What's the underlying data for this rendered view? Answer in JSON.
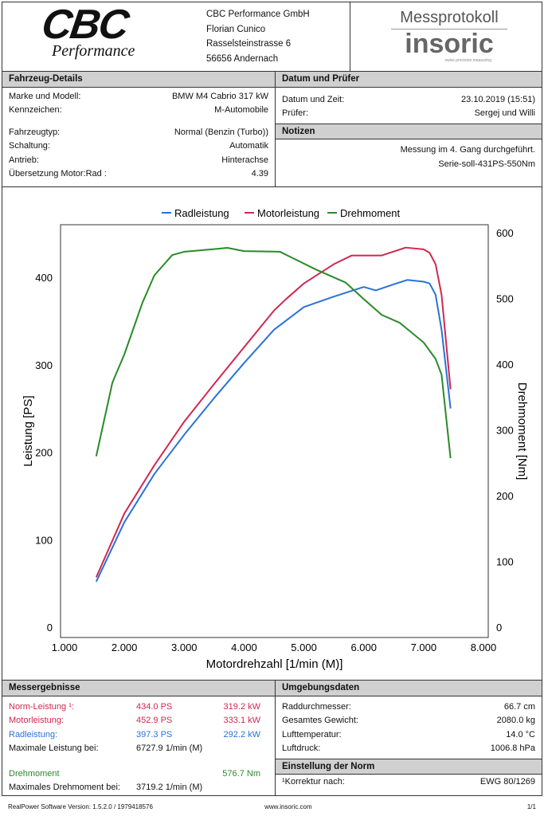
{
  "company": {
    "logo_text": "CBC",
    "logo_sub": "Performance",
    "lines": [
      "CBC Performance GmbH",
      "Florian Cunico",
      "Rasselsteinstrasse 6",
      "56656 Andernach"
    ]
  },
  "report": {
    "title": "Messprotokoll",
    "brand": "insoric",
    "brand_tagline": "swiss precision measuring"
  },
  "vehicle": {
    "title": "Fahrzeug-Details",
    "rows": [
      {
        "label": "Marke und Modell:",
        "value": "BMW M4 Cabrio 317 kW"
      },
      {
        "label": "Kennzeichen:",
        "value": "M-Automobile"
      },
      {
        "label": "Fahrzeugtyp:",
        "value": "Normal (Benzin (Turbo))"
      },
      {
        "label": "Schaltung:",
        "value": "Automatik"
      },
      {
        "label": "Antrieb:",
        "value": "Hinterachse"
      },
      {
        "label": "Übersetzung Motor:Rad :",
        "value": "4.39"
      }
    ]
  },
  "date": {
    "title": "Datum und Prüfer",
    "rows": [
      {
        "label": "Datum und Zeit:",
        "value": "23.10.2019 (15:51)"
      },
      {
        "label": "Prüfer:",
        "value": "Sergej und Willi"
      }
    ]
  },
  "notes": {
    "title": "Notizen",
    "lines": [
      "Messung im 4. Gang durchgeführt.",
      "Serie-soll-431PS-550Nm"
    ]
  },
  "chart_data": {
    "type": "line",
    "xlabel": "Motordrehzahl [1/min (M)]",
    "ylabel": "Leistung [PS]",
    "y2label": "Drehmoment [Nm]",
    "xlim": [
      1000,
      8000
    ],
    "ylim": [
      0,
      450
    ],
    "y2lim": [
      0,
      650
    ],
    "xticks": [
      "1.000",
      "2.000",
      "3.000",
      "4.000",
      "5.000",
      "6.000",
      "7.000",
      "8.000"
    ],
    "yticks": [
      "0",
      "100",
      "200",
      "300",
      "400"
    ],
    "y2ticks": [
      "0",
      "100",
      "200",
      "300",
      "400",
      "500",
      "600"
    ],
    "legend_position": "top-center",
    "series": [
      {
        "name": "Radleistung",
        "color": "#2a72d8",
        "axis": "left",
        "x": [
          1530,
          2000,
          2500,
          3000,
          3500,
          4000,
          4500,
          5000,
          5500,
          6000,
          6200,
          6500,
          6728,
          7000,
          7100,
          7200,
          7300,
          7450
        ],
        "y": [
          52,
          120,
          175,
          220,
          262,
          302,
          340,
          366,
          378,
          389,
          385,
          392,
          397,
          395,
          393,
          380,
          340,
          250
        ]
      },
      {
        "name": "Motorleistung",
        "color": "#d02850",
        "axis": "left",
        "x": [
          1530,
          2000,
          2500,
          3000,
          3500,
          4000,
          4500,
          4700,
          5000,
          5500,
          5800,
          6000,
          6300,
          6700,
          7000,
          7100,
          7200,
          7300,
          7450
        ],
        "y": [
          57,
          130,
          185,
          235,
          278,
          320,
          362,
          375,
          393,
          415,
          425,
          425,
          425,
          434,
          432,
          428,
          415,
          380,
          272
        ]
      },
      {
        "name": "Drehmoment",
        "color": "#2a8a2a",
        "axis": "right",
        "x": [
          1530,
          1800,
          2000,
          2300,
          2500,
          2800,
          3000,
          3500,
          3720,
          4000,
          4600,
          4800,
          5200,
          5700,
          6000,
          6300,
          6600,
          7000,
          7200,
          7300,
          7450
        ],
        "y": [
          260,
          372,
          415,
          493,
          535,
          566,
          571,
          575,
          577,
          572,
          571,
          562,
          544,
          524,
          499,
          475,
          463,
          433,
          408,
          384,
          257
        ]
      }
    ]
  },
  "results": {
    "title": "Messergebnisse",
    "rows": [
      {
        "label": "Norm-Leistung ¹:",
        "ps": "434.0 PS",
        "kw": "319.2 kW",
        "cls": "red"
      },
      {
        "label": "Motorleistung:",
        "ps": "452.9 PS",
        "kw": "333.1 kW",
        "cls": "red"
      },
      {
        "label": "Radleistung:",
        "ps": "397.3 PS",
        "kw": "292.2 kW",
        "cls": "blue"
      }
    ],
    "max_power_label": "Maximale Leistung bei:",
    "max_power_rpm": "6727.9 1/min (M)",
    "torque_label": "Drehmoment",
    "torque_value": "576.7 Nm",
    "max_torque_label": "Maximales Drehmoment bei:",
    "max_torque_rpm": "3719.2 1/min (M)"
  },
  "environment": {
    "title": "Umgebungsdaten",
    "rows": [
      {
        "label": "Raddurchmesser:",
        "value": "66.7 cm"
      },
      {
        "label": "Gesamtes Gewicht:",
        "value": "2080.0 kg"
      },
      {
        "label": "Lufttemperatur:",
        "value": "14.0 °C"
      },
      {
        "label": "Luftdruck:",
        "value": "1006.8 hPa"
      }
    ]
  },
  "norm": {
    "title": "Einstellung der Norm",
    "label": "¹Korrektur nach:",
    "value": "EWG 80/1269"
  },
  "footer": {
    "version": "RealPower Software Version: 1.5.2.0 / 1979418576",
    "url": "www.insoric.com",
    "page": "1/1"
  }
}
